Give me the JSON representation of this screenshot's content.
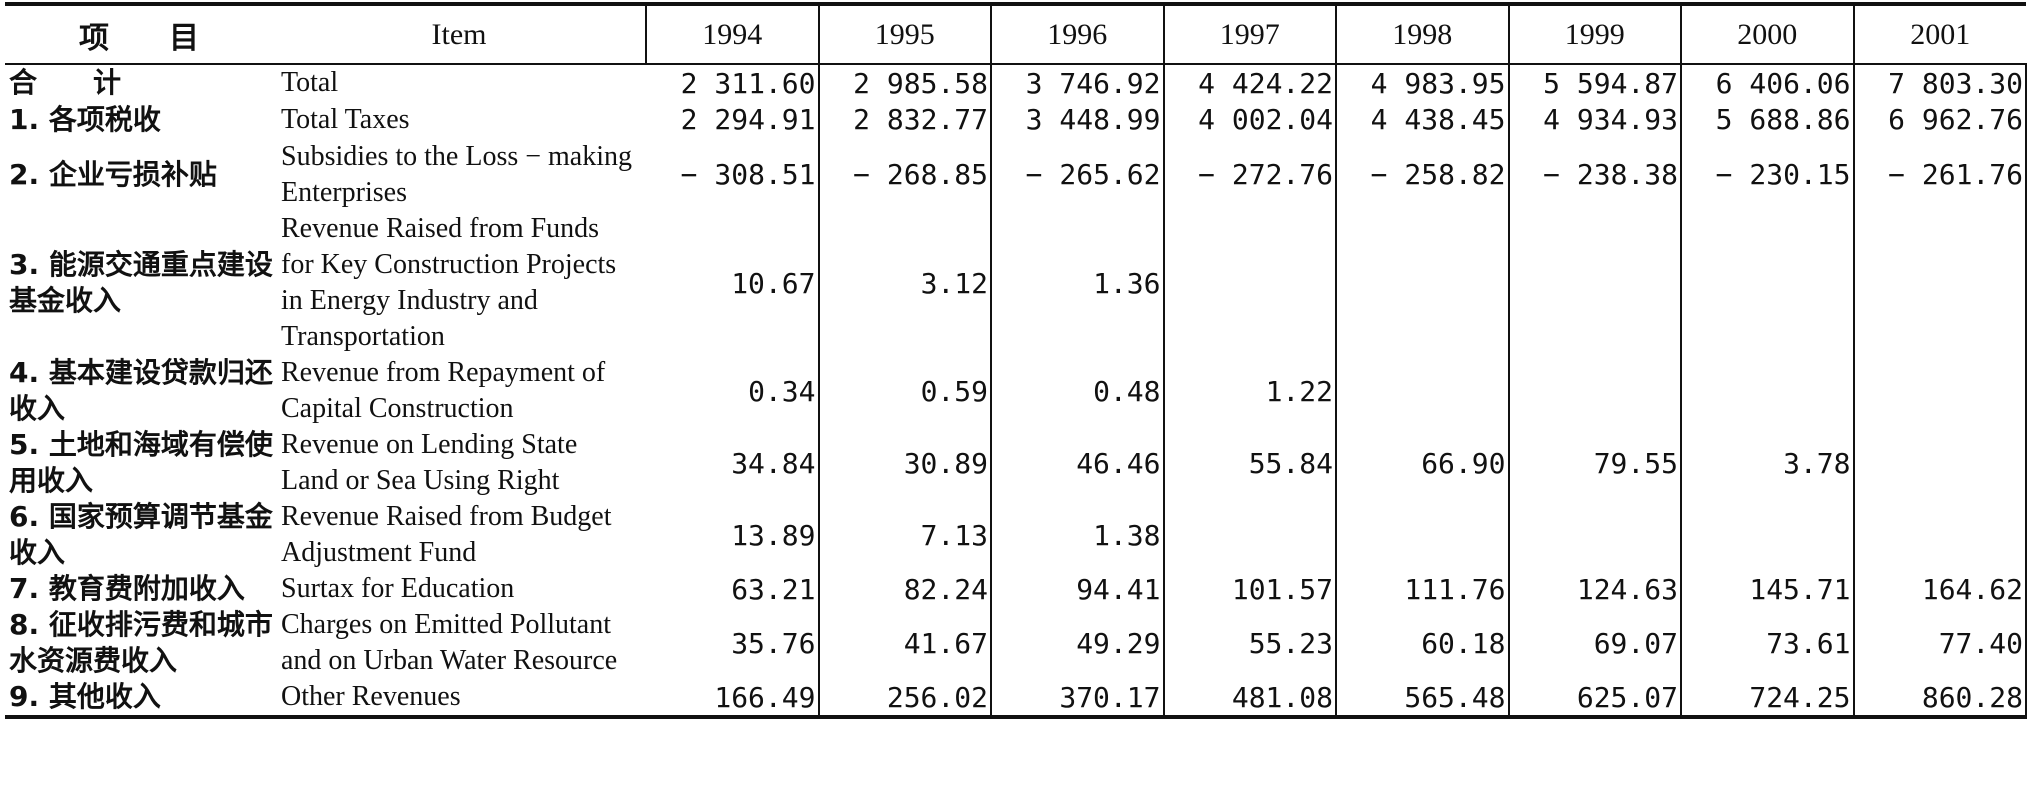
{
  "header": {
    "item_cn": "项　　目",
    "item_en": "Item",
    "years": [
      "1994",
      "1995",
      "1996",
      "1997",
      "1998",
      "1999",
      "2000",
      "2001"
    ]
  },
  "rows": [
    {
      "cn": "合　　计",
      "en": "Total",
      "v": [
        "2 311.60",
        "2 985.58",
        "3 746.92",
        "4 424.22",
        "4 983.95",
        "5 594.87",
        "6 406.06",
        "7 803.30"
      ]
    },
    {
      "cn": "1. 各项税收",
      "en": "Total Taxes",
      "v": [
        "2 294.91",
        "2 832.77",
        "3 448.99",
        "4 002.04",
        "4 438.45",
        "4 934.93",
        "5 688.86",
        "6 962.76"
      ]
    },
    {
      "cn": "2. 企业亏损补贴",
      "en": "Subsidies to the Loss − making Enterprises",
      "v": [
        "− 308.51",
        "− 268.85",
        "− 265.62",
        "− 272.76",
        "− 258.82",
        "− 238.38",
        "− 230.15",
        "− 261.76"
      ]
    },
    {
      "cn": "3. 能源交通重点建设基金收入",
      "en": "Revenue Raised from Funds for Key Construction Projects in Energy Industry and Transportation",
      "v": [
        "10.67",
        "3.12",
        "1.36",
        "",
        "",
        "",
        "",
        ""
      ]
    },
    {
      "cn": "4. 基本建设贷款归还收入",
      "en": "Revenue from Repayment of Capital Construction",
      "v": [
        "0.34",
        "0.59",
        "0.48",
        "1.22",
        "",
        "",
        "",
        ""
      ]
    },
    {
      "cn": "5. 土地和海域有偿使用收入",
      "en": "Revenue on Lending State Land or Sea Using Right",
      "v": [
        "34.84",
        "30.89",
        "46.46",
        "55.84",
        "66.90",
        "79.55",
        "3.78",
        ""
      ]
    },
    {
      "cn": "6. 国家预算调节基金收入",
      "en": "Revenue Raised from Budget Adjustment Fund",
      "v": [
        "13.89",
        "7.13",
        "1.38",
        "",
        "",
        "",
        "",
        ""
      ]
    },
    {
      "cn": "7. 教育费附加收入",
      "en": "Surtax for Education",
      "v": [
        "63.21",
        "82.24",
        "94.41",
        "101.57",
        "111.76",
        "124.63",
        "145.71",
        "164.62"
      ]
    },
    {
      "cn": "8. 征收排污费和城市水资源费收入",
      "en": "Charges on Emitted Pollutant and on Urban Water Resource",
      "v": [
        "35.76",
        "41.67",
        "49.29",
        "55.23",
        "60.18",
        "69.07",
        "73.61",
        "77.40"
      ]
    },
    {
      "cn": "9. 其他收入",
      "en": "Other Revenues",
      "v": [
        "166.49",
        "256.02",
        "370.17",
        "481.08",
        "565.48",
        "625.07",
        "724.25",
        "860.28"
      ]
    }
  ]
}
